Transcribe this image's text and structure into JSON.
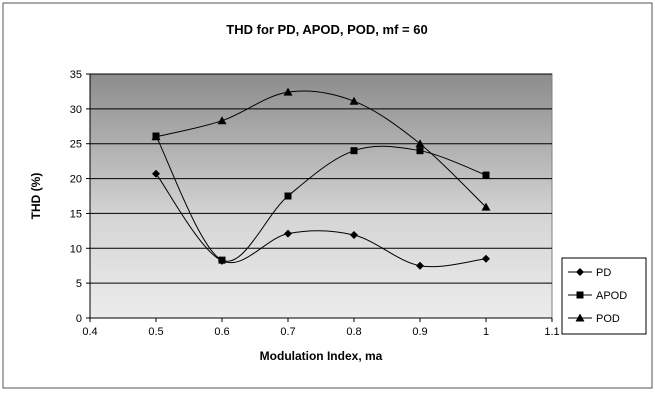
{
  "chart_data": {
    "type": "line",
    "title": "THD for PD, APOD, POD, mf = 60",
    "xlabel": "Modulation Index, ma",
    "ylabel": "THD (%)",
    "xlim": [
      0.4,
      1.1
    ],
    "ylim": [
      0,
      35
    ],
    "x_ticks": [
      "0.4",
      "0.5",
      "0.6",
      "0.7",
      "0.8",
      "0.9",
      "1",
      "1.1"
    ],
    "y_ticks": [
      "0",
      "5",
      "10",
      "15",
      "20",
      "25",
      "30",
      "35"
    ],
    "grid": "horizontal",
    "smoothed": true,
    "legend_position": "right",
    "series": [
      {
        "name": "PD",
        "marker": "diamond",
        "x": [
          0.5,
          0.6,
          0.7,
          0.8,
          0.9,
          1.0
        ],
        "y": [
          20.7,
          8.2,
          12.1,
          11.9,
          7.5,
          8.5
        ]
      },
      {
        "name": "APOD",
        "marker": "square",
        "x": [
          0.5,
          0.6,
          0.7,
          0.8,
          0.9,
          1.0
        ],
        "y": [
          26.1,
          8.3,
          17.5,
          24.0,
          24.0,
          20.5
        ]
      },
      {
        "name": "POD",
        "marker": "triangle",
        "x": [
          0.5,
          0.6,
          0.7,
          0.8,
          0.9,
          1.0
        ],
        "y": [
          26.0,
          28.3,
          32.4,
          31.1,
          25.0,
          15.9
        ]
      }
    ]
  }
}
